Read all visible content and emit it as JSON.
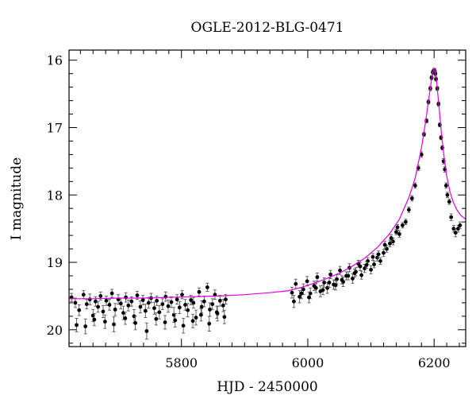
{
  "chart_data": {
    "type": "scatter",
    "title": "OGLE-2012-BLG-0471",
    "xlabel": "HJD - 2450000",
    "ylabel": "I magnitude",
    "xlim": [
      5622,
      6250
    ],
    "ylim": [
      20.25,
      15.85
    ],
    "y_inverted": true,
    "x_ticks": [
      5800,
      6000,
      6200
    ],
    "x_tick_labels": [
      "5800",
      "6000",
      "6200"
    ],
    "y_ticks": [
      16,
      17,
      18,
      19,
      20
    ],
    "y_tick_labels": [
      "16",
      "17",
      "18",
      "19",
      "20"
    ],
    "grid": false,
    "legend": "none",
    "colors": {
      "points": "#000000",
      "model": "#e000e0"
    },
    "series": [
      {
        "kind": "points_with_errorbars",
        "x": [
          5626,
          5632,
          5638,
          5645,
          5650,
          5655,
          5660,
          5664,
          5668,
          5672,
          5676,
          5681,
          5686,
          5690,
          5695,
          5700,
          5704,
          5708,
          5712,
          5716,
          5721,
          5725,
          5730,
          5735,
          5739,
          5743,
          5748,
          5752,
          5757,
          5761,
          5765,
          5770,
          5775,
          5779,
          5784,
          5788,
          5793,
          5797,
          5801,
          5806,
          5810,
          5815,
          5819,
          5823,
          5828,
          5832,
          5836,
          5841,
          5845,
          5849,
          5853,
          5857,
          5861,
          5866,
          5870,
          5634,
          5648,
          5662,
          5679,
          5693,
          5711,
          5727,
          5745,
          5760,
          5774,
          5790,
          5803,
          5818,
          5831,
          5844,
          5856,
          5868,
          5975,
          5981,
          5987,
          5993,
          5999,
          6004,
          6010,
          6015,
          6020,
          6026,
          6031,
          6036,
          6041,
          6046,
          6051,
          6056,
          6061,
          6066,
          6071,
          6076,
          6080,
          6085,
          6090,
          6095,
          6100,
          6105,
          6110,
          6115,
          6120,
          6125,
          6130,
          6135,
          6140,
          6145,
          6150,
          6155,
          6160,
          5978,
          5990,
          6002,
          6013,
          6024,
          6034,
          6044,
          6054,
          6064,
          6074,
          6083,
          6093,
          6103,
          6112,
          6122,
          6132,
          6142,
          6165,
          6170,
          6175,
          6180,
          6184,
          6188,
          6191,
          6194,
          6196,
          6198,
          6199,
          6200,
          6201,
          6202,
          6203,
          6205,
          6207,
          6209,
          6211,
          6213,
          6215,
          6217,
          6219,
          6221,
          6224,
          6227,
          6231,
          6234,
          6238,
          6241
        ],
        "y": [
          19.52,
          19.6,
          19.71,
          19.48,
          19.62,
          19.55,
          19.79,
          19.58,
          19.66,
          19.5,
          19.73,
          19.57,
          19.63,
          19.46,
          19.7,
          19.55,
          19.61,
          19.75,
          19.52,
          19.64,
          19.58,
          19.8,
          19.49,
          19.66,
          19.56,
          19.72,
          19.6,
          19.53,
          19.68,
          19.57,
          19.74,
          19.62,
          19.51,
          19.65,
          19.59,
          19.78,
          19.55,
          19.67,
          19.48,
          19.63,
          19.71,
          19.56,
          19.6,
          19.82,
          19.44,
          19.66,
          19.58,
          19.37,
          19.7,
          19.62,
          19.48,
          19.76,
          19.57,
          19.64,
          19.55,
          19.93,
          19.95,
          19.85,
          19.88,
          19.92,
          19.83,
          19.9,
          20.02,
          19.84,
          19.89,
          19.86,
          19.94,
          19.87,
          19.78,
          19.91,
          19.74,
          19.81,
          19.45,
          19.32,
          19.51,
          19.4,
          19.28,
          19.46,
          19.35,
          19.22,
          19.43,
          19.3,
          19.38,
          19.18,
          19.33,
          19.25,
          19.12,
          19.29,
          19.2,
          19.08,
          19.24,
          19.14,
          19.02,
          19.19,
          19.09,
          18.98,
          19.11,
          19.03,
          18.93,
          18.98,
          18.86,
          18.8,
          18.72,
          18.69,
          18.55,
          18.58,
          18.45,
          18.4,
          18.22,
          19.58,
          19.46,
          19.52,
          19.38,
          19.41,
          19.3,
          19.34,
          19.26,
          19.2,
          19.16,
          19.06,
          19.04,
          18.92,
          18.88,
          18.74,
          18.64,
          18.48,
          18.05,
          17.86,
          17.6,
          17.4,
          17.1,
          16.9,
          16.62,
          16.42,
          16.26,
          16.18,
          16.17,
          16.15,
          16.16,
          16.2,
          16.28,
          16.42,
          16.65,
          16.96,
          17.15,
          17.3,
          17.5,
          17.62,
          17.86,
          18.0,
          18.1,
          18.33,
          18.5,
          18.56,
          18.5,
          18.45
        ],
        "err": [
          0.06,
          0.07,
          0.08,
          0.06,
          0.07,
          0.08,
          0.09,
          0.07,
          0.08,
          0.06,
          0.09,
          0.07,
          0.08,
          0.06,
          0.09,
          0.07,
          0.08,
          0.1,
          0.07,
          0.08,
          0.07,
          0.1,
          0.06,
          0.09,
          0.07,
          0.1,
          0.08,
          0.07,
          0.09,
          0.07,
          0.1,
          0.08,
          0.07,
          0.09,
          0.08,
          0.11,
          0.07,
          0.09,
          0.06,
          0.08,
          0.1,
          0.07,
          0.08,
          0.11,
          0.06,
          0.09,
          0.08,
          0.06,
          0.1,
          0.08,
          0.07,
          0.11,
          0.08,
          0.09,
          0.07,
          0.1,
          0.11,
          0.09,
          0.1,
          0.11,
          0.09,
          0.1,
          0.12,
          0.09,
          0.1,
          0.1,
          0.11,
          0.1,
          0.09,
          0.11,
          0.09,
          0.1,
          0.08,
          0.07,
          0.09,
          0.08,
          0.07,
          0.08,
          0.07,
          0.06,
          0.08,
          0.07,
          0.08,
          0.06,
          0.07,
          0.07,
          0.06,
          0.07,
          0.06,
          0.06,
          0.07,
          0.06,
          0.05,
          0.06,
          0.06,
          0.05,
          0.06,
          0.05,
          0.05,
          0.05,
          0.05,
          0.05,
          0.05,
          0.05,
          0.04,
          0.05,
          0.04,
          0.04,
          0.04,
          0.09,
          0.08,
          0.08,
          0.07,
          0.07,
          0.07,
          0.07,
          0.06,
          0.06,
          0.06,
          0.06,
          0.05,
          0.05,
          0.05,
          0.05,
          0.05,
          0.04,
          0.04,
          0.04,
          0.04,
          0.04,
          0.03,
          0.03,
          0.03,
          0.03,
          0.03,
          0.03,
          0.03,
          0.03,
          0.03,
          0.03,
          0.03,
          0.03,
          0.03,
          0.03,
          0.03,
          0.03,
          0.04,
          0.04,
          0.04,
          0.04,
          0.04,
          0.05,
          0.05,
          0.06,
          0.05,
          0.05
        ]
      },
      {
        "kind": "model_curve",
        "x": [
          5622,
          5660,
          5700,
          5740,
          5780,
          5820,
          5860,
          5900,
          5940,
          5970,
          5990,
          6010,
          6030,
          6050,
          6070,
          6090,
          6110,
          6130,
          6145,
          6160,
          6170,
          6180,
          6186,
          6192,
          6196,
          6199,
          6200,
          6201,
          6204,
          6208,
          6212,
          6216,
          6220,
          6225,
          6230,
          6236,
          6242,
          6250
        ],
        "y": [
          19.54,
          19.54,
          19.53,
          19.53,
          19.52,
          19.51,
          19.5,
          19.48,
          19.45,
          19.42,
          19.37,
          19.31,
          19.24,
          19.16,
          19.06,
          18.94,
          18.78,
          18.57,
          18.36,
          18.04,
          17.75,
          17.3,
          16.95,
          16.55,
          16.28,
          16.14,
          16.12,
          16.14,
          16.32,
          16.72,
          17.12,
          17.45,
          17.72,
          17.95,
          18.1,
          18.22,
          18.3,
          18.36
        ]
      }
    ]
  }
}
